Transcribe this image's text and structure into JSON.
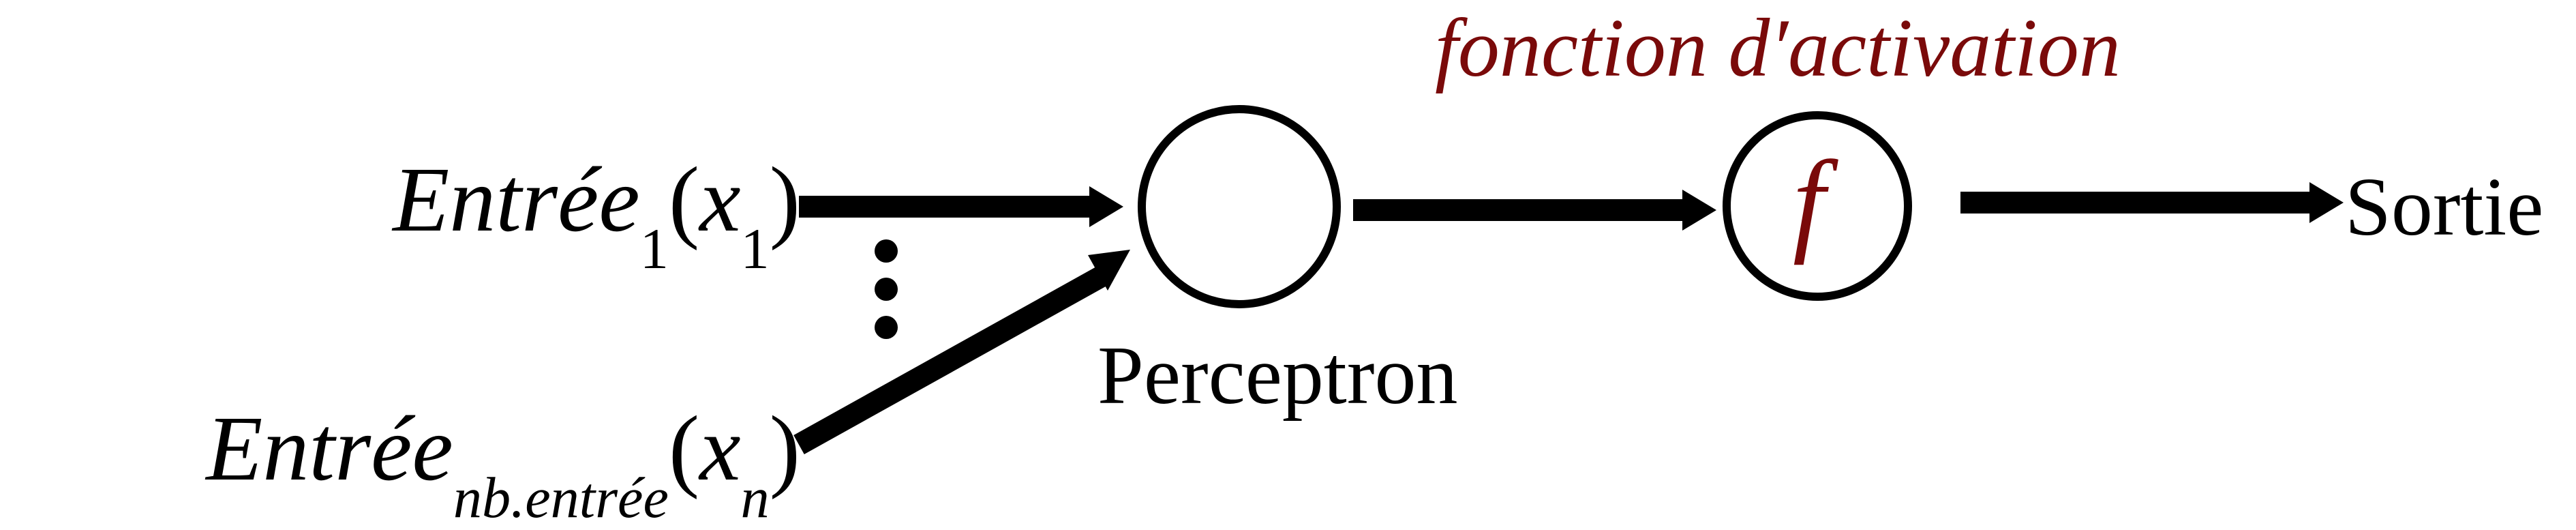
{
  "inputs": {
    "first": {
      "name": "Entrée",
      "subscript": "1",
      "var": "x",
      "var_subscript": "1"
    },
    "last": {
      "name": "Entrée",
      "subscript": "nb.entrée",
      "var": "x",
      "var_subscript": "n"
    },
    "ellipsis": "⋮"
  },
  "perceptron": {
    "label": "Perceptron"
  },
  "activation": {
    "label": "fonction d′activation",
    "symbol": "f"
  },
  "output": {
    "label": "Sortie"
  },
  "colors": {
    "ink": "#000000",
    "accent": "#7a0a0a",
    "background": "#ffffff"
  }
}
